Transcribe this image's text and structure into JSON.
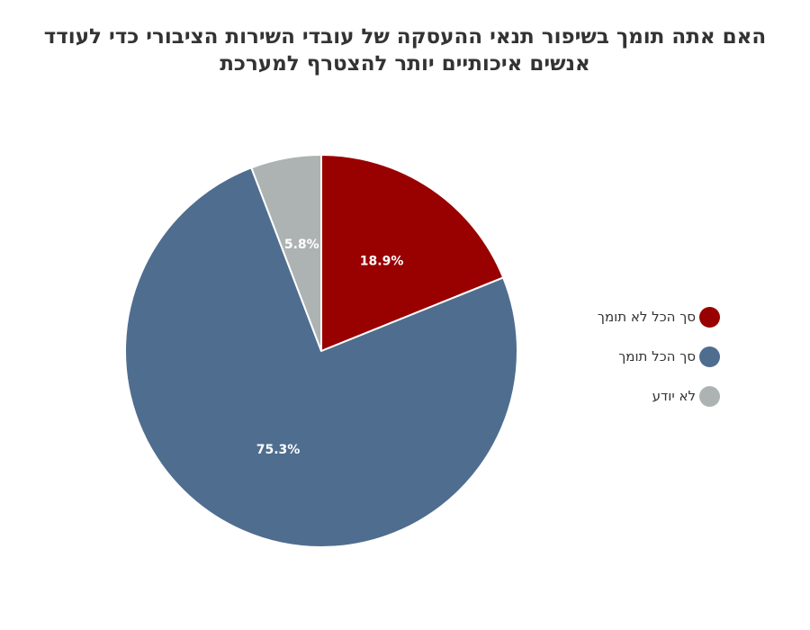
{
  "chart_data": {
    "type": "pie",
    "title": "האם אתה תומך בשיפור תנאי ההעסקה של עובדי השירות הציבורי כדי לעודד אנשים איכותיים יותר להצטרף למערכת",
    "slices": [
      {
        "label": "סך הכל לא תומך",
        "value": 18.9,
        "value_label": "18.9%",
        "color": "#990000"
      },
      {
        "label": "סך הכל תומך",
        "value": 75.3,
        "value_label": "75.3%",
        "color": "#4f6d8f"
      },
      {
        "label": "לא יודע",
        "value": 5.8,
        "value_label": "5.8%",
        "color": "#adb3b3"
      }
    ],
    "legend_position": "right",
    "start_angle": "12 o'clock",
    "direction": "clockwise"
  }
}
